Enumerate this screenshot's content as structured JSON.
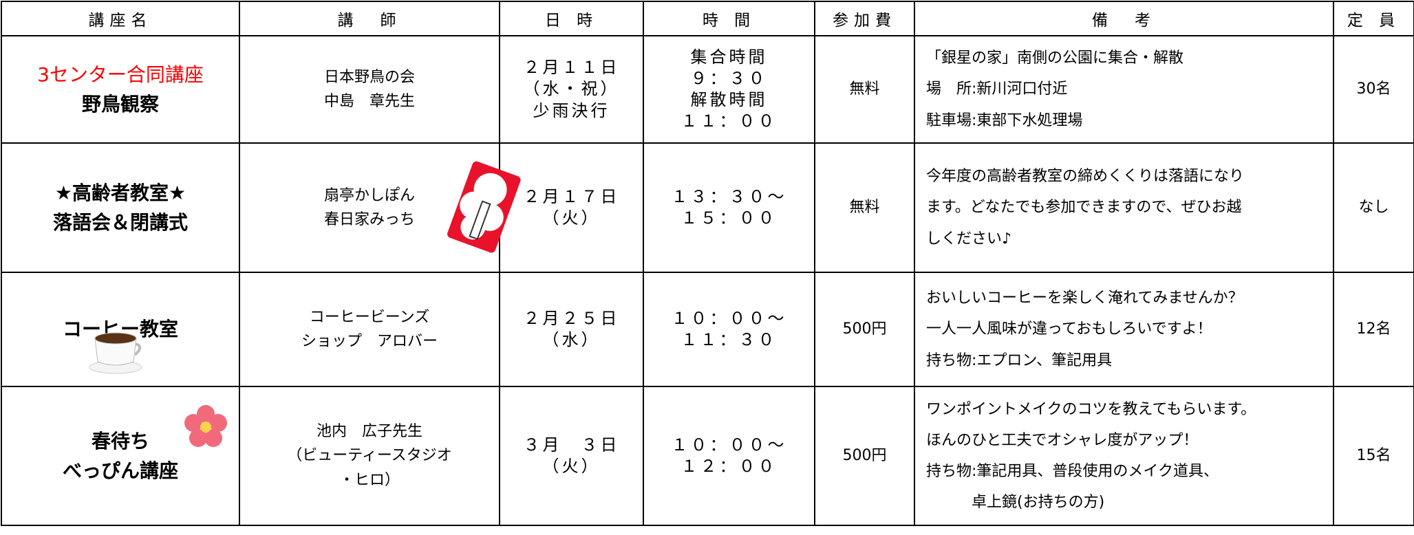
{
  "table": {
    "header": [
      "講座名",
      "講　師",
      "日 時",
      "時 間",
      "参加費",
      "備　考",
      "定 員"
    ],
    "rows": [
      [
        [
          "3センター合同講座",
          "野鳥観察"
        ],
        [
          "日本野鳥の会",
          "中島　章先生"
        ],
        [
          "２月１１日",
          "（水・祝）",
          "少雨決行"
        ],
        [
          "集合時間",
          "９：３０",
          "解散時間",
          "１１：００"
        ],
        [
          "無料"
        ],
        [
          "「銀星の家」南側の公園に集合・解散",
          "場　所:新川河口付近",
          "駐車場:東部下水処理場"
        ],
        [
          "30名"
        ]
      ],
      [
        [
          "★高齢者教室★",
          "落語会＆閉講式"
        ],
        [
          "扇亭かしぽん",
          "春日家みっち"
        ],
        [
          "２月１７日",
          "（火）"
        ],
        [
          "１３：３０～",
          "１５：００"
        ],
        [
          "無料"
        ],
        [
          "今年度の高齢者教室の締めくくりは落語になり",
          "ます。どなたでも参加できますので、ぜひお越",
          "しください♪"
        ],
        [
          "なし"
        ]
      ],
      [
        [
          "コーヒー教室"
        ],
        [
          "コーヒービーンズ",
          "ショップ　アロバー"
        ],
        [
          "２月２５日",
          "（水）"
        ],
        [
          "１０：００～",
          "１１：３０"
        ],
        [
          "500円"
        ],
        [
          "おいしいコーヒーを楽しく淹れてみませんか？",
          "一人一人風味が違っておもしろいですよ！",
          "持ち物:エプロン、筆記用具"
        ],
        [
          "12名"
        ]
      ],
      [
        [
          "春待ち",
          "べっぴん講座"
        ],
        [
          "池内　広子先生",
          "（ビューティースタジオ",
          "・ヒロ）"
        ],
        [
          "３月　３日",
          "（火）"
        ],
        [
          "１０：００～",
          "１２：００"
        ],
        [
          "500円"
        ],
        [
          "ワンポイントメイクのコツを教えてもらいます。",
          "ほんのひと工夫でオシャレ度がアップ！",
          "持ち物:筆記用具、普段使用のメイク道具、",
          "　　　卓上鏡(お持ちの方)"
        ],
        [
          "15名"
        ]
      ]
    ]
  }
}
